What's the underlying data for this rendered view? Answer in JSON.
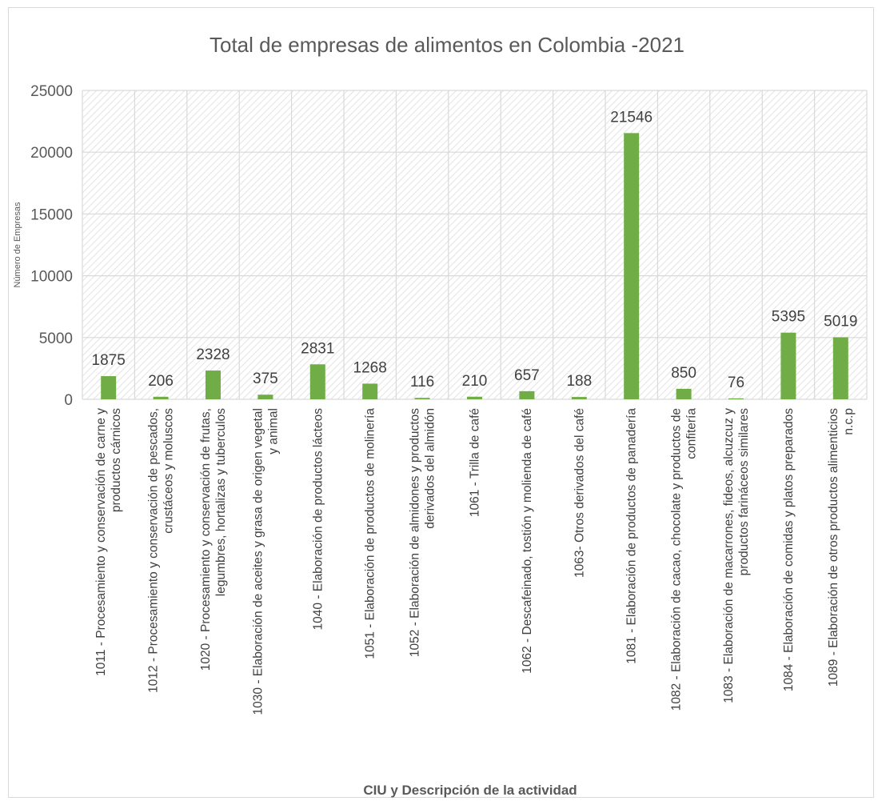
{
  "chart_data": {
    "type": "bar",
    "title": "Total de empresas de alimentos en Colombia -2021",
    "xlabel": "CIU y Descripción de la actividad",
    "ylabel": "Número de Empresas",
    "ylim": [
      0,
      25000
    ],
    "yticks": [
      "0",
      "5000",
      "10000",
      "15000",
      "20000",
      "25000"
    ],
    "grid": true,
    "legend": "none",
    "bar_color": "#70ad47",
    "categories": [
      [
        "1011 - Procesamiento y conservación de carne y",
        "productos cárnicos"
      ],
      [
        "1012 - Procesamiento y conservación de pescados,",
        "crustáceos y moluscos"
      ],
      [
        "1020 - Procesamiento y conservación de frutas,",
        "legumbres, hortalizas y tuberculos"
      ],
      [
        "1030 - Elaboración de aceites y grasa de origen vegetal",
        "y animal"
      ],
      [
        "1040 - Elaboración de productos lácteos"
      ],
      [
        "1051 - Elaboración de productos de molinería"
      ],
      [
        "1052 - Elaboración de almidones y productos",
        "derivados del almidón"
      ],
      [
        "1061 - Trilla de café"
      ],
      [
        "1062 - Descafeinado, tostión y molienda de café"
      ],
      [
        "1063- Otros derivados del café"
      ],
      [
        "1081 - Elaboración de productos de panadería"
      ],
      [
        "1082 - Elaboración de cacao, chocolate y productos de",
        "confitería"
      ],
      [
        "1083 - Elaboración de macarrones, fideos, alcuzcuz y",
        "productos farináceos similares"
      ],
      [
        "1084 - Elaboración de comidas y platos preparados"
      ],
      [
        "1089 - Elaboración de otros productos alimenticios",
        "n.c.p"
      ]
    ],
    "values": [
      1875,
      206,
      2328,
      375,
      2831,
      1268,
      116,
      210,
      657,
      188,
      21546,
      850,
      76,
      5395,
      5019
    ]
  }
}
